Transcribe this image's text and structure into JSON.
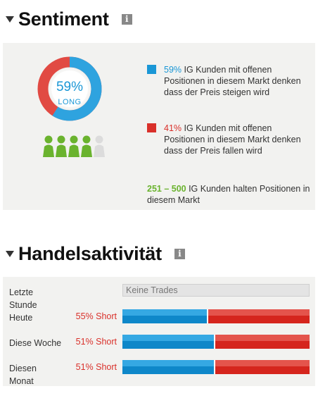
{
  "sentiment": {
    "title": "Sentiment",
    "info_glyph": "i",
    "donut": {
      "long_percent": 59,
      "percent_label": "59%",
      "side_label": "LONG"
    },
    "people_icons": {
      "total": 5,
      "filled": 4,
      "filled_color": "#6ab32e",
      "empty_color": "#dcdcdc"
    },
    "long_row": {
      "percent": "59%",
      "text": " IG Kunden mit offenen Positionen in diesem Markt denken dass der Preis steigen wird",
      "color": "#1a97d6"
    },
    "short_row": {
      "percent": "41%",
      "text": " IG Kunden mit offenen Positionen in diesem Markt denken dass der Preis fallen wird",
      "color": "#d9302a"
    },
    "holders": {
      "range": "251 – 500",
      "text": " IG Kunden halten Positionen in diesem Markt"
    }
  },
  "activity": {
    "title": "Handelsaktivität",
    "info_glyph": "i",
    "rows": [
      {
        "label": "Letzte Stunde",
        "value": "",
        "empty_text": "Keine Trades"
      },
      {
        "label": "Heute",
        "value": "55% Short",
        "short_percent": 55
      },
      {
        "label": "Diese Woche",
        "value": "51% Short",
        "short_percent": 51
      },
      {
        "label": "Diesen Monat",
        "value": "51% Short",
        "short_percent": 51
      }
    ]
  }
}
